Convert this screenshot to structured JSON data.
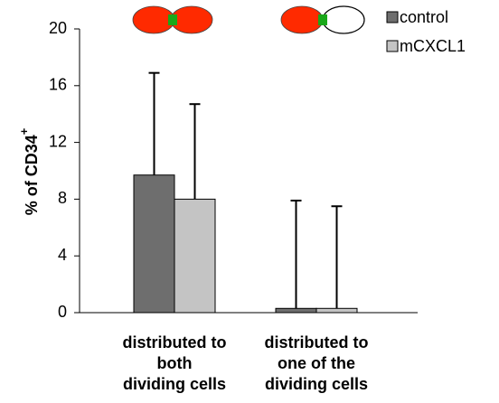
{
  "chart_data": {
    "type": "bar",
    "y_label": "% of CD34",
    "y_label_sup": "+",
    "categories": [
      [
        "distributed to",
        "both",
        "dividing cells"
      ],
      [
        "distributed to",
        "one of the",
        "dividing cells"
      ]
    ],
    "series": [
      {
        "name": "control",
        "color": "#6e6e6e",
        "values": [
          9.7,
          0.3
        ],
        "errors": [
          7.2,
          7.6
        ]
      },
      {
        "name": "mCXCL1",
        "color": "#c4c4c4",
        "values": [
          8.0,
          0.3
        ],
        "errors": [
          6.7,
          7.2
        ]
      }
    ],
    "ylim": [
      0,
      20
    ],
    "yticks": [
      0,
      4,
      8,
      12,
      16,
      20
    ]
  }
}
